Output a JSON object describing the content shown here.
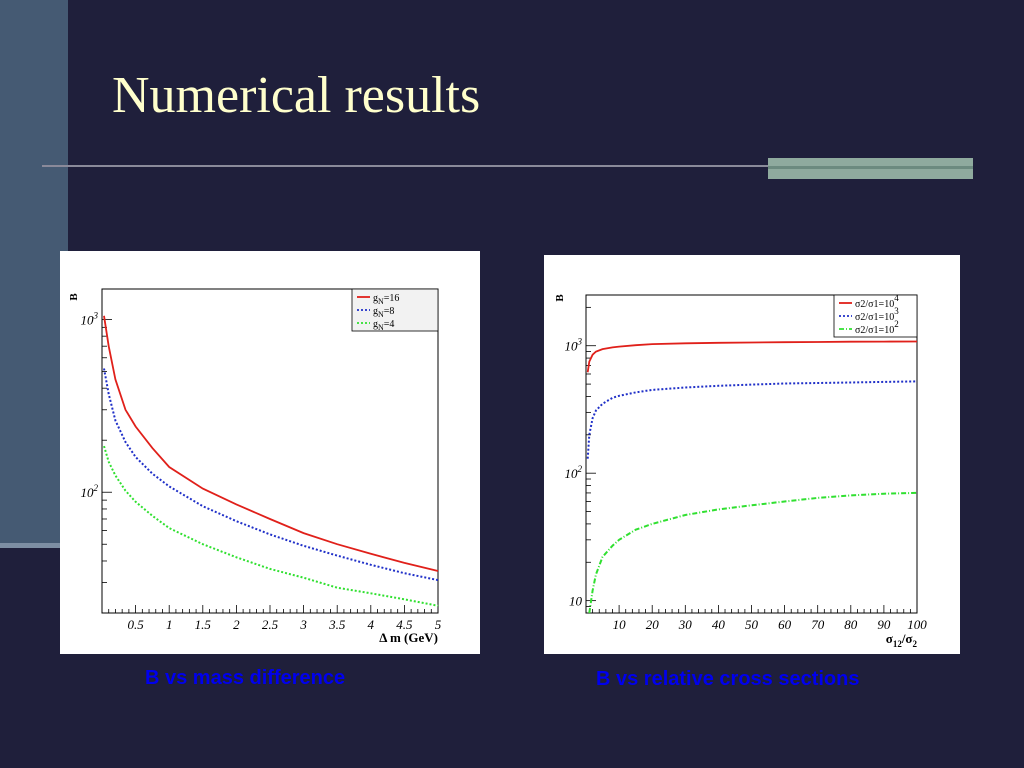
{
  "slide": {
    "title": "Numerical results",
    "caption_left": "B vs mass difference",
    "caption_right": "B vs relative cross sections"
  },
  "colors": {
    "background": "#1f1f3b",
    "title": "#ffffcc",
    "caption": "#0000ee",
    "series_red": "#e0201a",
    "series_blue": "#2030c8",
    "series_green": "#30e030"
  },
  "chart_data": [
    {
      "type": "line",
      "ylabel": "B",
      "xlabel": "Δ m (GeV)",
      "xlim": [
        0,
        5
      ],
      "ylim": [
        20,
        1500
      ],
      "yscale": "log",
      "x_ticks": [
        "0.5",
        "1",
        "1.5",
        "2",
        "2.5",
        "3",
        "3.5",
        "4",
        "4.5",
        "5"
      ],
      "y_tick_labels": [
        {
          "value": 100,
          "label": "10",
          "exp": "2"
        },
        {
          "value": 1000,
          "label": "10",
          "exp": "3"
        }
      ],
      "legend_position": "top-right",
      "series": [
        {
          "name": "g",
          "name_sub": "N",
          "name_rest": "=16",
          "style": "solid",
          "color": "#e0201a",
          "x": [
            0.03,
            0.1,
            0.2,
            0.35,
            0.5,
            0.75,
            1.0,
            1.5,
            2.0,
            2.5,
            3.0,
            3.5,
            4.0,
            4.5,
            5.0
          ],
          "y": [
            1050,
            700,
            450,
            300,
            240,
            180,
            140,
            105,
            85,
            70,
            58,
            50,
            44,
            39,
            35
          ]
        },
        {
          "name": "g",
          "name_sub": "N",
          "name_rest": "=8",
          "style": "dotted",
          "color": "#2030c8",
          "x": [
            0.03,
            0.1,
            0.2,
            0.35,
            0.5,
            0.75,
            1.0,
            1.5,
            2.0,
            2.5,
            3.0,
            3.5,
            4.0,
            4.5,
            5.0
          ],
          "y": [
            520,
            370,
            260,
            195,
            160,
            128,
            108,
            83,
            68,
            57,
            49,
            43,
            38,
            34,
            31
          ]
        },
        {
          "name": "g",
          "name_sub": "N",
          "name_rest": "=4",
          "style": "dotted",
          "color": "#30e030",
          "x": [
            0.03,
            0.1,
            0.2,
            0.35,
            0.5,
            0.75,
            1.0,
            1.5,
            2.0,
            2.5,
            3.0,
            3.5,
            4.0,
            4.5,
            5.0
          ],
          "y": [
            185,
            150,
            125,
            102,
            88,
            73,
            62,
            50,
            42,
            36,
            32,
            28,
            26,
            24,
            22
          ]
        }
      ]
    },
    {
      "type": "line",
      "ylabel": "B",
      "xlabel": "σ12/σ2",
      "xlim": [
        0,
        100
      ],
      "ylim": [
        8,
        2500
      ],
      "yscale": "log",
      "x_ticks": [
        "10",
        "20",
        "30",
        "40",
        "50",
        "60",
        "70",
        "80",
        "90",
        "100"
      ],
      "y_tick_labels": [
        {
          "value": 10,
          "label": "10",
          "exp": ""
        },
        {
          "value": 100,
          "label": "10",
          "exp": "2"
        },
        {
          "value": 1000,
          "label": "10",
          "exp": "3"
        }
      ],
      "legend_position": "top-right",
      "series": [
        {
          "name": "σ2/σ1=10",
          "name_exp": "4",
          "style": "solid",
          "color": "#e0201a",
          "x": [
            0.5,
            1,
            2,
            3,
            5,
            8,
            10,
            15,
            20,
            30,
            40,
            50,
            60,
            70,
            80,
            90,
            100
          ],
          "y": [
            620,
            750,
            850,
            900,
            940,
            970,
            985,
            1010,
            1030,
            1045,
            1055,
            1060,
            1065,
            1070,
            1075,
            1078,
            1080
          ]
        },
        {
          "name": "σ2/σ1=10",
          "name_exp": "3",
          "style": "dotted",
          "color": "#2030c8",
          "x": [
            0.5,
            1,
            2,
            3,
            5,
            8,
            10,
            15,
            20,
            30,
            40,
            50,
            60,
            70,
            80,
            90,
            100
          ],
          "y": [
            130,
            200,
            270,
            310,
            350,
            390,
            405,
            430,
            450,
            470,
            485,
            495,
            505,
            510,
            515,
            520,
            525
          ]
        },
        {
          "name": "σ2/σ1=10",
          "name_exp": "2",
          "style": "dashdot",
          "color": "#30e030",
          "x": [
            1,
            2,
            3,
            5,
            8,
            10,
            15,
            20,
            30,
            40,
            50,
            60,
            70,
            80,
            90,
            100
          ],
          "y": [
            8,
            12,
            16,
            22,
            27,
            30,
            36,
            40,
            47,
            52,
            56,
            60,
            64,
            67,
            69,
            70
          ]
        }
      ]
    }
  ]
}
